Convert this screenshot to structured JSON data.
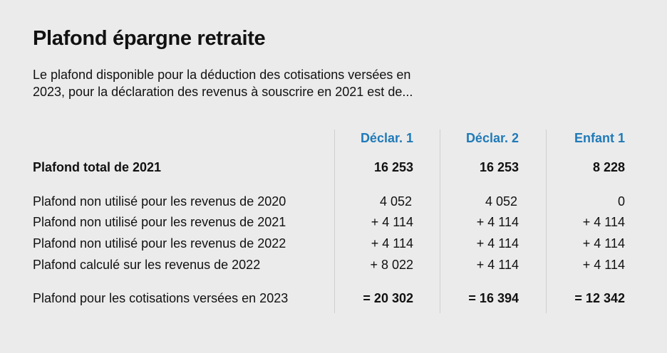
{
  "title": "Plafond épargne retraite",
  "description": {
    "line1": "Le plafond disponible pour la déduction des cotisations versées en",
    "line2": "2023, pour la déclaration des revenus  à souscrire en 2021 est de..."
  },
  "columns": [
    "Déclar. 1",
    "Déclar. 2",
    "Enfant 1"
  ],
  "accent_color": "#1f7ab8",
  "rows": [
    {
      "label": "Plafond total de 2021",
      "values": [
        "16 253",
        "16 253",
        "8 228"
      ]
    },
    {
      "label": "Plafond non utilisé pour les revenus de 2020",
      "values": [
        "4 052",
        "4 052",
        "0"
      ]
    },
    {
      "label": "Plafond non utilisé pour les revenus de 2021",
      "values": [
        "+ 4 114",
        "+ 4 114",
        "+ 4 114"
      ]
    },
    {
      "label": "Plafond non utilisé pour les revenus de 2022",
      "values": [
        "+ 4 114",
        "+ 4 114",
        "+ 4 114"
      ]
    },
    {
      "label": "Plafond calculé sur les revenus de 2022",
      "values": [
        "+ 8 022",
        "+ 4 114",
        "+ 4 114"
      ]
    },
    {
      "label": "Plafond pour les cotisations versées en 2023",
      "values": [
        "= 20 302",
        "= 16 394",
        "= 12 342"
      ]
    }
  ]
}
